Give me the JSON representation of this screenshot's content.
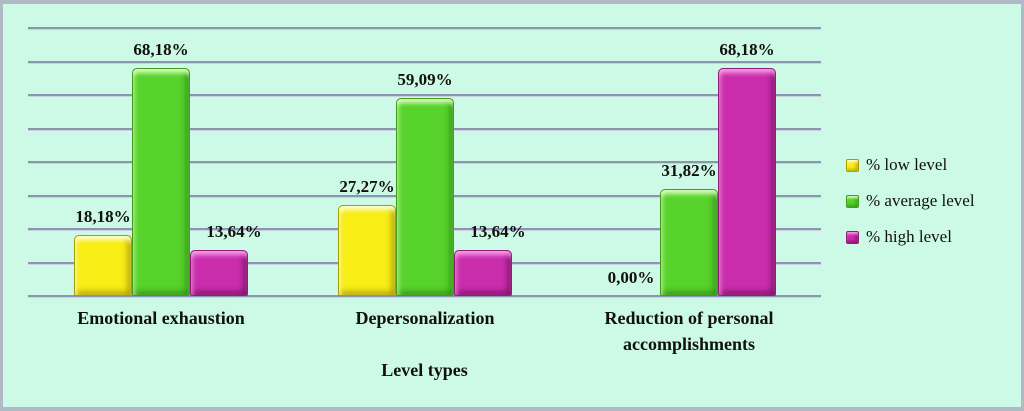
{
  "chart_data": {
    "type": "bar",
    "title": "",
    "xlabel": "Level types",
    "ylabel": "",
    "ylim": [
      0,
      80
    ],
    "gridlines": 9,
    "grid": true,
    "legend_position": "right",
    "background_color": "#cdfae6",
    "frame_color": "#b1b9c7",
    "gridline_color": "#8b95af",
    "categories": [
      "Emotional exhaustion",
      "Depersonalization",
      "Reduction of personal accomplishments"
    ],
    "series": [
      {
        "name": "% low level",
        "color": "#f7ee16",
        "values": [
          18.18,
          27.27,
          0.0
        ],
        "value_labels": [
          "18,18%",
          "27,27%",
          "0,00%"
        ]
      },
      {
        "name": "% average level",
        "color": "#58d32c",
        "values": [
          68.18,
          59.09,
          31.82
        ],
        "value_labels": [
          "68,18%",
          "59,09%",
          "31,82%"
        ]
      },
      {
        "name": "% high level",
        "color": "#ca2ead",
        "values": [
          13.64,
          13.64,
          68.18
        ],
        "value_labels": [
          "13,64%",
          "13,64%",
          "68,18%"
        ]
      }
    ]
  }
}
